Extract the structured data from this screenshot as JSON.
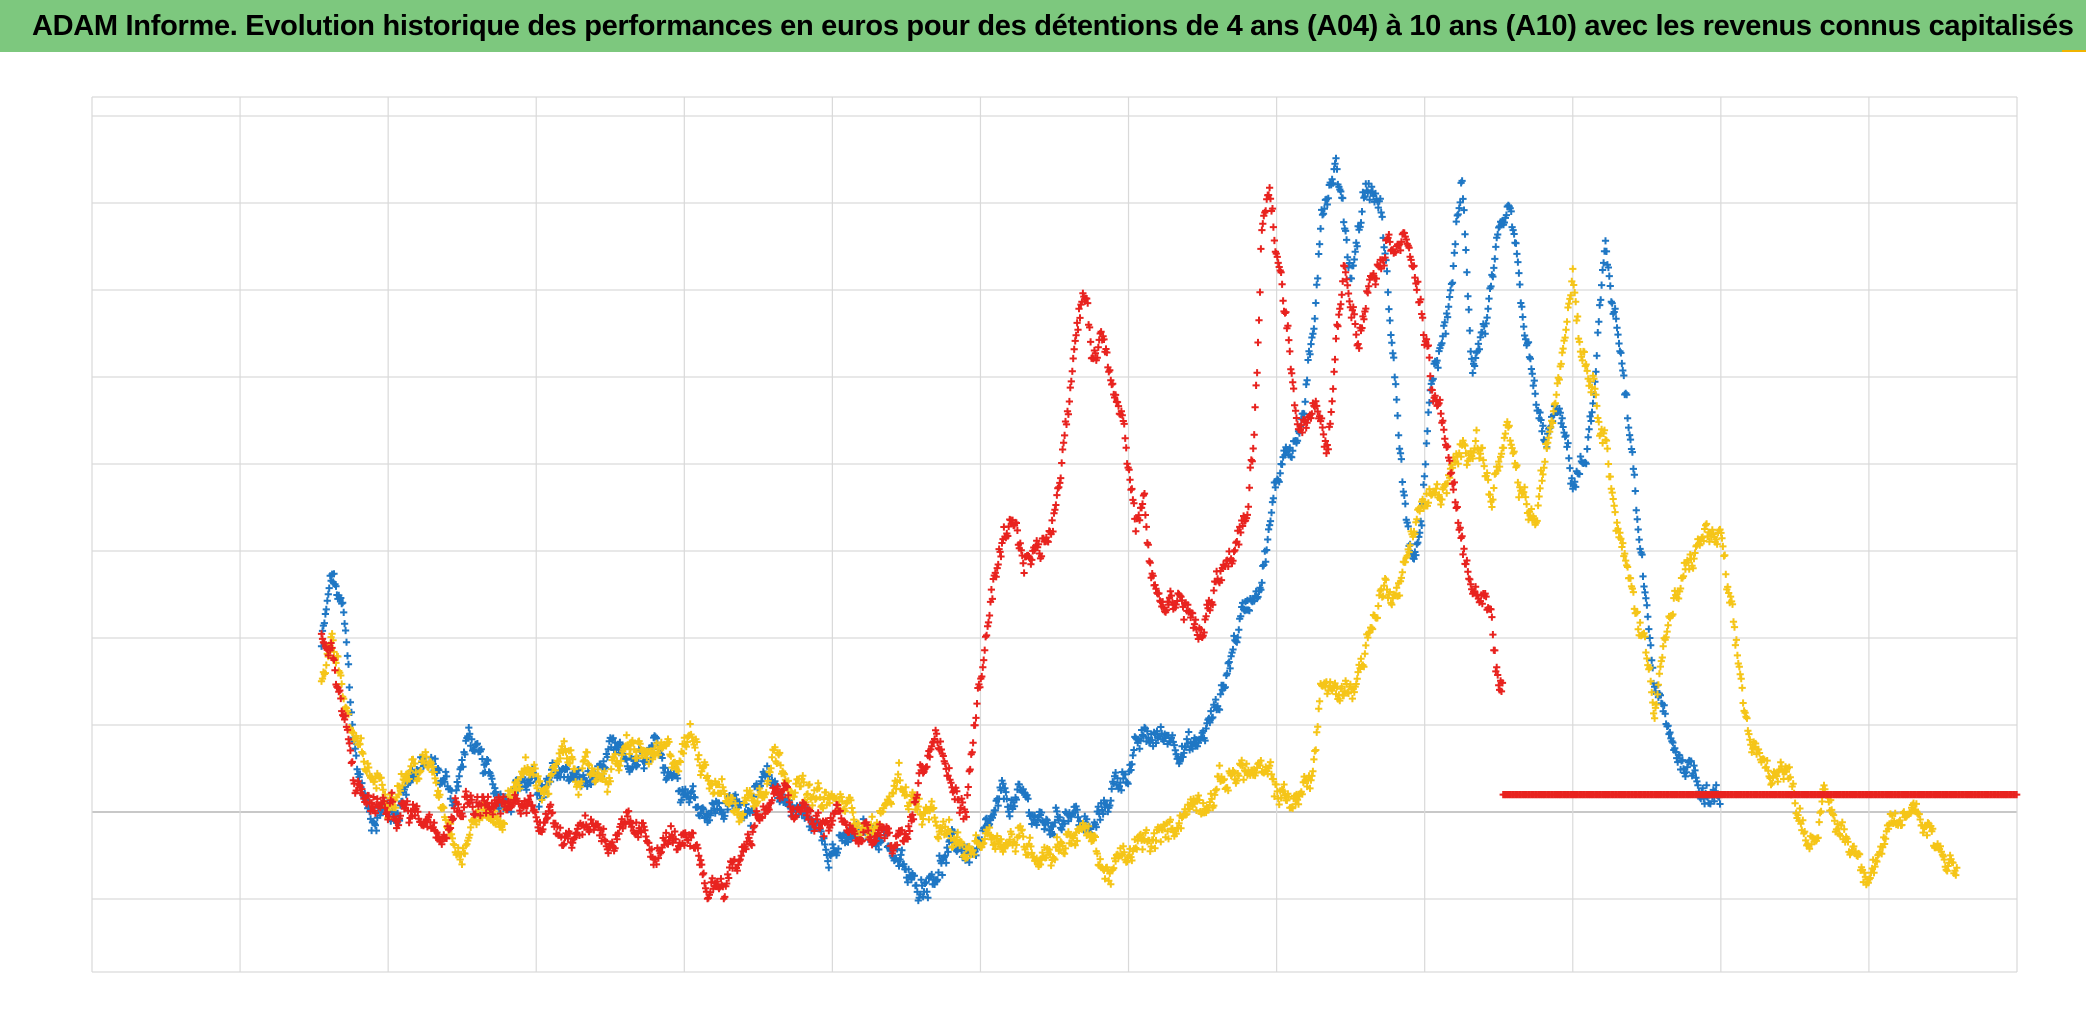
{
  "header": {
    "title": "ADAM Informe. Evolution historique des performances en euros pour des détentions de 4 ans (A04) à 10 ans (A10) avec les revenus connus capitalisés"
  },
  "chart_data": {
    "type": "scatter",
    "title": "ADAM Informe. Evolution historique des performances en euros pour des détentions de 4 ans (A04) à 10 ans (A10) avec les revenus connus capitalisés",
    "xlabel": "",
    "ylabel": "",
    "xlim": [
      0,
      13
    ],
    "ylim": [
      -2,
      10
    ],
    "grid": true,
    "marker": "+",
    "legend": "none",
    "series": [
      {
        "name": "blue",
        "color": "#1f77c4",
        "x_range": [
          1.55,
          11.0
        ],
        "anchors": [
          [
            1.55,
            1.9
          ],
          [
            1.62,
            2.7
          ],
          [
            1.7,
            2.2
          ],
          [
            1.78,
            0.6
          ],
          [
            1.88,
            -0.1
          ],
          [
            1.95,
            0.1
          ],
          [
            2.05,
            -0.05
          ],
          [
            2.15,
            0.5
          ],
          [
            2.3,
            0.5
          ],
          [
            2.45,
            0.2
          ],
          [
            2.55,
            0.9
          ],
          [
            2.62,
            0.5
          ],
          [
            2.75,
            0.2
          ],
          [
            2.9,
            0.4
          ],
          [
            3.05,
            0.2
          ],
          [
            3.2,
            0.5
          ],
          [
            3.35,
            0.3
          ],
          [
            3.5,
            0.6
          ],
          [
            3.7,
            0.5
          ],
          [
            3.85,
            0.6
          ],
          [
            3.95,
            0.5
          ],
          [
            4.1,
            0.1
          ],
          [
            4.3,
            0.05
          ],
          [
            4.5,
            0.2
          ],
          [
            4.6,
            0.3
          ],
          [
            4.75,
            0.05
          ],
          [
            4.9,
            -0.2
          ],
          [
            5.05,
            -0.4
          ],
          [
            5.2,
            -0.3
          ],
          [
            5.35,
            -0.2
          ],
          [
            5.45,
            -0.6
          ],
          [
            5.55,
            -0.9
          ],
          [
            5.7,
            -0.6
          ],
          [
            5.85,
            -0.4
          ],
          [
            6.0,
            -0.5
          ],
          [
            6.15,
            0.1
          ],
          [
            6.3,
            0.1
          ],
          [
            6.45,
            -0.2
          ],
          [
            6.6,
            0.1
          ],
          [
            6.75,
            -0.3
          ],
          [
            6.9,
            0.3
          ],
          [
            7.1,
            0.8
          ],
          [
            7.3,
            0.9
          ],
          [
            7.45,
            0.7
          ],
          [
            7.6,
            1.2
          ],
          [
            7.75,
            2.2
          ],
          [
            7.9,
            2.8
          ],
          [
            8.05,
            4.2
          ],
          [
            8.15,
            4.3
          ],
          [
            8.25,
            5.4
          ],
          [
            8.3,
            7.0
          ],
          [
            8.4,
            7.5
          ],
          [
            8.5,
            6.2
          ],
          [
            8.6,
            7.2
          ],
          [
            8.7,
            7.0
          ],
          [
            8.78,
            5.4
          ],
          [
            8.88,
            3.2
          ],
          [
            8.95,
            2.8
          ],
          [
            9.05,
            4.9
          ],
          [
            9.15,
            5.6
          ],
          [
            9.25,
            7.2
          ],
          [
            9.32,
            5.2
          ],
          [
            9.42,
            5.7
          ],
          [
            9.5,
            6.4
          ],
          [
            9.58,
            6.8
          ],
          [
            9.65,
            5.8
          ],
          [
            9.72,
            5.0
          ],
          [
            9.8,
            4.2
          ],
          [
            9.9,
            4.6
          ],
          [
            10.0,
            3.8
          ],
          [
            10.08,
            4.0
          ],
          [
            10.15,
            4.8
          ],
          [
            10.22,
            6.5
          ],
          [
            10.3,
            5.6
          ],
          [
            10.38,
            4.4
          ],
          [
            10.45,
            3.0
          ],
          [
            10.55,
            1.5
          ],
          [
            10.65,
            0.8
          ],
          [
            10.75,
            0.6
          ],
          [
            10.85,
            0.4
          ],
          [
            10.95,
            0.2
          ],
          [
            11.0,
            0.1
          ]
        ]
      },
      {
        "name": "yellow",
        "color": "#f5c518",
        "x_range": [
          1.55,
          12.6
        ],
        "anchors": [
          [
            1.55,
            1.5
          ],
          [
            1.62,
            2.1
          ],
          [
            1.7,
            1.3
          ],
          [
            1.78,
            0.7
          ],
          [
            1.88,
            0.4
          ],
          [
            2.0,
            0.3
          ],
          [
            2.15,
            0.5
          ],
          [
            2.3,
            0.5
          ],
          [
            2.4,
            0.0
          ],
          [
            2.5,
            -0.4
          ],
          [
            2.6,
            0.0
          ],
          [
            2.75,
            -0.1
          ],
          [
            2.9,
            0.5
          ],
          [
            3.05,
            0.3
          ],
          [
            3.2,
            0.6
          ],
          [
            3.35,
            0.4
          ],
          [
            3.5,
            0.5
          ],
          [
            3.65,
            0.7
          ],
          [
            3.8,
            0.6
          ],
          [
            3.95,
            0.6
          ],
          [
            4.05,
            0.9
          ],
          [
            4.2,
            0.4
          ],
          [
            4.35,
            0.0
          ],
          [
            4.5,
            0.3
          ],
          [
            4.6,
            0.7
          ],
          [
            4.7,
            0.5
          ],
          [
            4.85,
            0.1
          ],
          [
            5.0,
            0.1
          ],
          [
            5.15,
            0.0
          ],
          [
            5.3,
            -0.2
          ],
          [
            5.45,
            0.4
          ],
          [
            5.6,
            0.0
          ],
          [
            5.75,
            -0.3
          ],
          [
            5.9,
            -0.5
          ],
          [
            6.05,
            -0.2
          ],
          [
            6.2,
            -0.3
          ],
          [
            6.35,
            -0.4
          ],
          [
            6.5,
            -0.4
          ],
          [
            6.65,
            -0.2
          ],
          [
            6.75,
            -0.3
          ],
          [
            6.85,
            -0.7
          ],
          [
            6.95,
            -0.6
          ],
          [
            7.1,
            -0.4
          ],
          [
            7.25,
            -0.3
          ],
          [
            7.35,
            0.0
          ],
          [
            7.5,
            0.2
          ],
          [
            7.6,
            0.3
          ],
          [
            7.75,
            0.5
          ],
          [
            7.9,
            0.4
          ],
          [
            8.05,
            0.2
          ],
          [
            8.15,
            0.1
          ],
          [
            8.25,
            0.5
          ],
          [
            8.3,
            1.5
          ],
          [
            8.4,
            1.3
          ],
          [
            8.55,
            1.6
          ],
          [
            8.7,
            2.5
          ],
          [
            8.85,
            2.7
          ],
          [
            8.95,
            3.5
          ],
          [
            9.05,
            3.6
          ],
          [
            9.15,
            3.7
          ],
          [
            9.25,
            4.1
          ],
          [
            9.35,
            4.4
          ],
          [
            9.45,
            3.6
          ],
          [
            9.55,
            4.3
          ],
          [
            9.65,
            3.6
          ],
          [
            9.75,
            3.3
          ],
          [
            9.85,
            4.4
          ],
          [
            9.95,
            5.7
          ],
          [
            10.0,
            6.3
          ],
          [
            10.05,
            5.5
          ],
          [
            10.15,
            4.9
          ],
          [
            10.22,
            4.4
          ],
          [
            10.3,
            3.3
          ],
          [
            10.38,
            2.6
          ],
          [
            10.48,
            2.0
          ],
          [
            10.55,
            1.3
          ],
          [
            10.62,
            2.0
          ],
          [
            10.7,
            2.4
          ],
          [
            10.8,
            2.9
          ],
          [
            10.9,
            3.2
          ],
          [
            11.0,
            3.1
          ],
          [
            11.1,
            1.8
          ],
          [
            11.2,
            0.8
          ],
          [
            11.3,
            0.4
          ],
          [
            11.4,
            0.6
          ],
          [
            11.5,
            0.2
          ],
          [
            11.6,
            -0.3
          ],
          [
            11.7,
            0.1
          ],
          [
            11.8,
            -0.2
          ],
          [
            11.9,
            -0.4
          ],
          [
            12.0,
            -0.6
          ],
          [
            12.1,
            -0.4
          ],
          [
            12.2,
            -0.2
          ],
          [
            12.3,
            0.1
          ],
          [
            12.4,
            -0.1
          ],
          [
            12.5,
            -0.5
          ],
          [
            12.6,
            -0.6
          ]
        ]
      },
      {
        "name": "red",
        "color": "#e8231f",
        "x_range": [
          1.55,
          13.0
        ],
        "anchors": [
          [
            1.55,
            2.0
          ],
          [
            1.62,
            1.8
          ],
          [
            1.7,
            1.0
          ],
          [
            1.78,
            0.3
          ],
          [
            1.88,
            0.1
          ],
          [
            2.05,
            0.0
          ],
          [
            2.2,
            0.0
          ],
          [
            2.35,
            -0.1
          ],
          [
            2.5,
            0.2
          ],
          [
            2.65,
            0.1
          ],
          [
            2.8,
            0.0
          ],
          [
            2.95,
            0.1
          ],
          [
            3.1,
            -0.1
          ],
          [
            3.25,
            -0.2
          ],
          [
            3.4,
            -0.1
          ],
          [
            3.5,
            -0.3
          ],
          [
            3.65,
            -0.3
          ],
          [
            3.8,
            -0.4
          ],
          [
            3.95,
            -0.3
          ],
          [
            4.05,
            -0.5
          ],
          [
            4.15,
            -0.9
          ],
          [
            4.25,
            -0.8
          ],
          [
            4.35,
            -0.6
          ],
          [
            4.45,
            -0.2
          ],
          [
            4.55,
            0.1
          ],
          [
            4.65,
            0.2
          ],
          [
            4.75,
            0.0
          ],
          [
            4.85,
            -0.1
          ],
          [
            4.95,
            -0.2
          ],
          [
            5.05,
            0.0
          ],
          [
            5.15,
            -0.3
          ],
          [
            5.3,
            -0.3
          ],
          [
            5.4,
            -0.4
          ],
          [
            5.5,
            -0.3
          ],
          [
            5.6,
            0.5
          ],
          [
            5.7,
            0.9
          ],
          [
            5.8,
            0.3
          ],
          [
            5.9,
            0.0
          ],
          [
            6.0,
            1.6
          ],
          [
            6.1,
            2.6
          ],
          [
            6.2,
            3.2
          ],
          [
            6.3,
            2.9
          ],
          [
            6.4,
            3.0
          ],
          [
            6.5,
            3.4
          ],
          [
            6.55,
            4.2
          ],
          [
            6.65,
            5.5
          ],
          [
            6.7,
            6.0
          ],
          [
            6.75,
            5.3
          ],
          [
            6.82,
            5.5
          ],
          [
            6.9,
            5.0
          ],
          [
            6.95,
            4.8
          ],
          [
            7.0,
            4.0
          ],
          [
            7.05,
            3.3
          ],
          [
            7.1,
            3.5
          ],
          [
            7.15,
            2.8
          ],
          [
            7.2,
            2.4
          ],
          [
            7.3,
            2.5
          ],
          [
            7.4,
            2.3
          ],
          [
            7.5,
            2.0
          ],
          [
            7.6,
            2.7
          ],
          [
            7.7,
            3.0
          ],
          [
            7.8,
            3.4
          ],
          [
            7.85,
            4.3
          ],
          [
            7.9,
            6.6
          ],
          [
            7.95,
            7.0
          ],
          [
            8.05,
            5.9
          ],
          [
            8.15,
            4.5
          ],
          [
            8.25,
            4.6
          ],
          [
            8.35,
            4.2
          ],
          [
            8.45,
            6.3
          ],
          [
            8.55,
            5.6
          ],
          [
            8.65,
            6.3
          ],
          [
            8.75,
            6.6
          ],
          [
            8.85,
            6.7
          ],
          [
            8.95,
            6.1
          ],
          [
            9.05,
            4.8
          ],
          [
            9.15,
            4.3
          ],
          [
            9.25,
            3.0
          ],
          [
            9.35,
            2.5
          ],
          [
            9.45,
            2.3
          ],
          [
            9.5,
            1.6
          ],
          [
            9.53,
            1.3
          ]
        ],
        "flat_value": 0.2,
        "flat_x_range": [
          9.53,
          13.0
        ]
      }
    ]
  }
}
